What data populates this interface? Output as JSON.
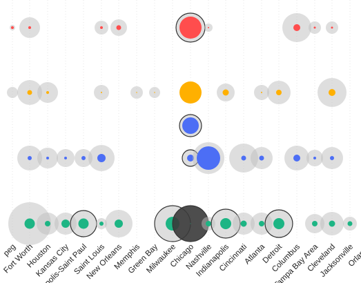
{
  "chart_data": {
    "type": "scatter",
    "title": "",
    "xlabel": "",
    "ylabel": "",
    "grid": false,
    "categories": [
      "peg",
      "Fort Worth",
      "Houston",
      "Kansas City",
      "polis-Saint Paul",
      "Saint Louis",
      "New Orleans",
      "Memphis",
      "Green Bay",
      "Milwaukee",
      "Chicago",
      "Nashville",
      "Indianapolis",
      "Cincinnati",
      "Atlanta",
      "Detroit",
      "Columbus",
      "Tampa Bay Area",
      "Cleveland",
      "Jacksonville",
      "Orlando"
    ],
    "highlighted": [
      "Minneapolis-Saint Paul",
      "Milwaukee",
      "Indianapolis",
      "Detroit"
    ],
    "series": [
      {
        "color": "#ff4d4d",
        "points": [
          {
            "x": "peg",
            "outer": 4,
            "inner": 2
          },
          {
            "x": "Fort Worth",
            "outer": 15,
            "inner": 2
          },
          {
            "x": "Saint Louis",
            "outer": 10,
            "inner": 2
          },
          {
            "x": "New Orleans",
            "outer": 12,
            "inner": 3.5
          },
          {
            "x": "Chicago",
            "outer": 21,
            "inner": 16
          },
          {
            "x": "Nashville",
            "outer": 6,
            "inner": 1
          },
          {
            "x": "Columbus",
            "outer": 21,
            "inner": 5
          },
          {
            "x": "Tampa Bay Area",
            "outer": 9,
            "inner": 1.5
          },
          {
            "x": "Cleveland",
            "outer": 9,
            "inner": 1.5
          }
        ]
      },
      {
        "color": "#ffb000",
        "points": [
          {
            "x": "peg",
            "outer": 8,
            "inner": 0
          },
          {
            "x": "Fort Worth",
            "outer": 18,
            "inner": 3.5
          },
          {
            "x": "Houston",
            "outer": 15,
            "inner": 2
          },
          {
            "x": "Saint Louis",
            "outer": 11,
            "inner": 1
          },
          {
            "x": "Memphis",
            "outer": 9,
            "inner": 0.8
          },
          {
            "x": "Green Bay",
            "outer": 8,
            "inner": 0.8
          },
          {
            "x": "Chicago",
            "outer": 12,
            "inner": 16
          },
          {
            "x": "Indianapolis",
            "outer": 13,
            "inner": 4.5
          },
          {
            "x": "Atlanta",
            "outer": 11,
            "inner": 1
          },
          {
            "x": "Detroit",
            "outer": 17,
            "inner": 4
          },
          {
            "x": "Cleveland",
            "outer": 21,
            "inner": 5
          },
          {
            "x": "Orlando",
            "outer": 7,
            "inner": 0
          }
        ]
      },
      {
        "color": "#4c6ef5",
        "points": [
          {
            "x": "Chicago",
            "outer": 16,
            "inner": 12
          }
        ]
      },
      {
        "color": "#4c6ef5",
        "points": [
          {
            "x": "Fort Worth",
            "outer": 18,
            "inner": 3
          },
          {
            "x": "Houston",
            "outer": 15,
            "inner": 2
          },
          {
            "x": "Kansas City",
            "outer": 13,
            "inner": 2
          },
          {
            "x": "Minneapolis-Saint Paul",
            "outer": 13,
            "inner": 3
          },
          {
            "x": "Saint Louis",
            "outer": 19,
            "inner": 6
          },
          {
            "x": "Chicago",
            "outer": 12,
            "inner": 5
          },
          {
            "x": "Nashville",
            "outer": 23,
            "inner": 17
          },
          {
            "x": "Atlanta",
            "outer": 16,
            "inner": 3.5
          },
          {
            "x": "Cincinnati",
            "outer": 21,
            "inner": 3.5
          },
          {
            "x": "Columbus",
            "outer": 18,
            "inner": 5
          },
          {
            "x": "Tampa Bay Area",
            "outer": 12,
            "inner": 2
          },
          {
            "x": "Cleveland",
            "outer": 16,
            "inner": 3
          }
        ]
      },
      {
        "color": "#1db584",
        "points": [
          {
            "x": "Fort Worth",
            "outer": 31,
            "inner": 7.5
          },
          {
            "x": "Houston",
            "outer": 16,
            "inner": 4
          },
          {
            "x": "Kansas City",
            "outer": 16,
            "inner": 6
          },
          {
            "x": "Minneapolis-Saint Paul",
            "outer": 19,
            "inner": 7.5
          },
          {
            "x": "Saint Louis",
            "outer": 8,
            "inner": 3
          },
          {
            "x": "New Orleans",
            "outer": 20,
            "inner": 6
          },
          {
            "x": "Milwaukee",
            "outer": 26,
            "inner": 10
          },
          {
            "x": "Chicago",
            "outer": 26,
            "inner": 0.5
          },
          {
            "x": "Nashville",
            "outer": 10,
            "inner": 4
          },
          {
            "x": "Indianapolis",
            "outer": 21,
            "inner": 8
          },
          {
            "x": "Cincinnati",
            "outer": 16,
            "inner": 4.5
          },
          {
            "x": "Atlanta",
            "outer": 16,
            "inner": 4
          },
          {
            "x": "Detroit",
            "outer": 20,
            "inner": 8
          },
          {
            "x": "Tampa Bay Area",
            "outer": 14,
            "inner": 4
          },
          {
            "x": "Cleveland",
            "outer": 17,
            "inner": 4.5
          },
          {
            "x": "Jacksonville",
            "outer": 10,
            "inner": 3.5
          }
        ]
      }
    ]
  }
}
